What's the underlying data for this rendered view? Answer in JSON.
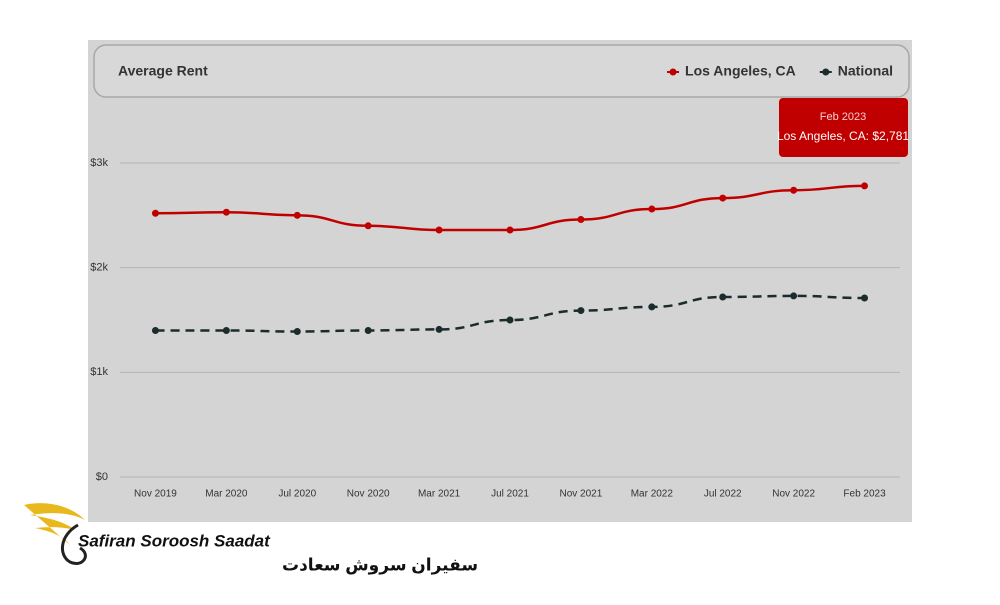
{
  "chart_data": {
    "type": "line",
    "title": "Average Rent",
    "categories": [
      "Nov 2019",
      "Mar 2020",
      "Jul 2020",
      "Nov 2020",
      "Mar 2021",
      "Jul 2021",
      "Nov 2021",
      "Mar 2022",
      "Jul 2022",
      "Nov 2022",
      "Feb 2023"
    ],
    "series": [
      {
        "name": "Los Angeles, CA",
        "color": "#c00000",
        "line_style": "solid",
        "values": [
          2520,
          2530,
          2500,
          2400,
          2360,
          2360,
          2460,
          2560,
          2665,
          2740,
          2781
        ]
      },
      {
        "name": "National",
        "color": "#1c2b2b",
        "line_style": "dashed",
        "values": [
          1400,
          1400,
          1390,
          1400,
          1410,
          1500,
          1590,
          1625,
          1720,
          1730,
          1710
        ]
      }
    ],
    "ylim": [
      0,
      3000
    ],
    "yticks": [
      {
        "value": 0,
        "label": "$0"
      },
      {
        "value": 1000,
        "label": "$1k"
      },
      {
        "value": 2000,
        "label": "$2k"
      },
      {
        "value": 3000,
        "label": "$3k"
      }
    ],
    "grid": true,
    "legend": "top-right",
    "tooltip": {
      "title": "Feb 2023",
      "text": "Los Angeles, CA: $2,781"
    }
  },
  "watermark": {
    "name": "Safiran Soroosh Saadat",
    "name_fa": "سفیران سروش سعادت"
  }
}
